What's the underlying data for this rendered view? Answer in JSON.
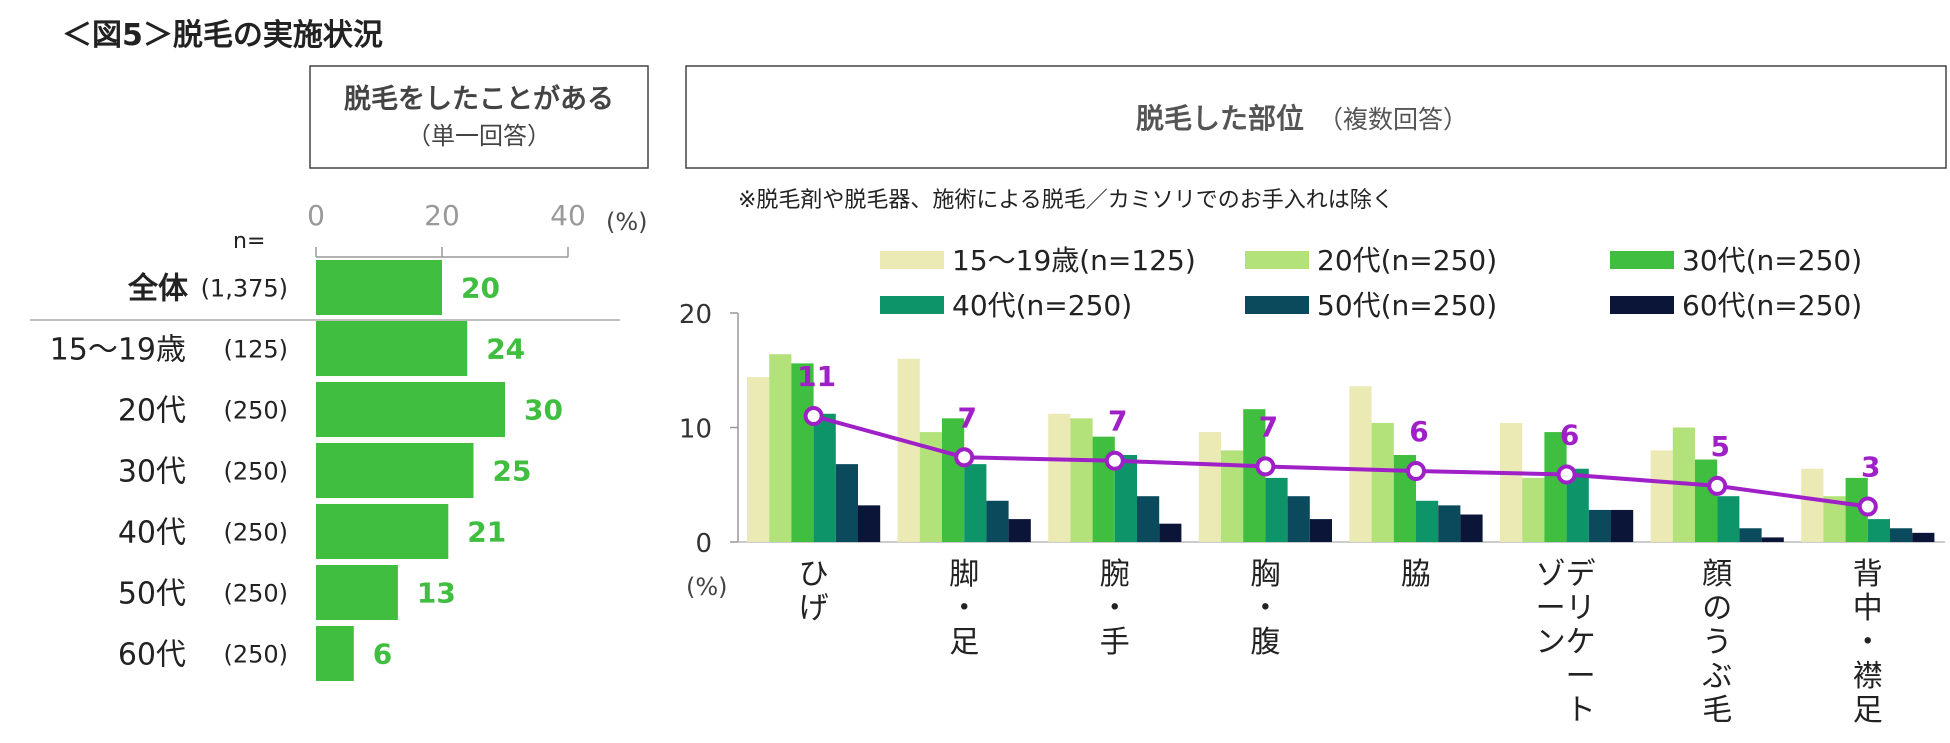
{
  "title": "＜図5＞脱毛の実施状況",
  "left_panel": {
    "header_title": "脱毛をしたことがある",
    "header_sub": "（単一回答）",
    "n_label": "n=",
    "percent_label": "(%)"
  },
  "right_panel": {
    "header_title": "脱毛した部位",
    "header_sub": "（複数回答）",
    "note": "※脱毛剤や脱毛器、施術による脱毛／カミソリでのお手入れは除く",
    "percent_label": "(%)"
  },
  "colors": {
    "bar_green": "#3fbe3f",
    "value_green": "#3fbe3f",
    "total_line": "#a020c8",
    "s15": "#ebe9b4",
    "s20": "#b4e27a",
    "s30": "#3fbe3f",
    "s40": "#0d9468",
    "s50": "#0b4a5c",
    "s60": "#0a1538",
    "axis": "#999999",
    "frame": "#444444"
  },
  "chart_data": [
    {
      "type": "bar",
      "orientation": "horizontal",
      "title": "脱毛をしたことがある（単一回答）",
      "categories": [
        "全体",
        "15～19歳",
        "20代",
        "30代",
        "40代",
        "50代",
        "60代"
      ],
      "n_labels": [
        "(1,375)",
        "(125)",
        "(250)",
        "(250)",
        "(250)",
        "(250)",
        "(250)"
      ],
      "values": [
        20,
        24,
        30,
        25,
        21,
        13,
        6
      ],
      "xlim": [
        0,
        40
      ],
      "xticks": [
        "0",
        "20",
        "40"
      ],
      "xlabel": "(%)"
    },
    {
      "type": "bar",
      "title": "脱毛した部位（複数回答）",
      "categories": [
        "ひげ",
        "脚・足",
        "腕・手",
        "胸・腹",
        "脇",
        "デリケートゾーン",
        "顔のうぶ毛",
        "背中・襟足"
      ],
      "category_columns": [
        [
          "ひげ"
        ],
        [
          "脚・足"
        ],
        [
          "腕・手"
        ],
        [
          "胸・腹"
        ],
        [
          "脇"
        ],
        [
          "デリケート",
          "ゾーン"
        ],
        [
          "顔のうぶ毛"
        ],
        [
          "背中・襟足"
        ]
      ],
      "series": [
        {
          "name": "15～19歳(n=125)",
          "values": [
            14.4,
            16.0,
            11.2,
            9.6,
            13.6,
            10.4,
            8.0,
            6.4
          ]
        },
        {
          "name": "20代(n=250)",
          "values": [
            16.4,
            9.6,
            10.8,
            8.0,
            10.4,
            5.6,
            10.0,
            4.0
          ]
        },
        {
          "name": "30代(n=250)",
          "values": [
            15.6,
            10.8,
            9.2,
            11.6,
            7.6,
            9.6,
            7.2,
            5.6
          ]
        },
        {
          "name": "40代(n=250)",
          "values": [
            11.2,
            6.8,
            7.6,
            5.6,
            3.6,
            6.4,
            4.0,
            2.0
          ]
        },
        {
          "name": "50代(n=250)",
          "values": [
            6.8,
            3.6,
            4.0,
            4.0,
            3.2,
            2.8,
            1.2,
            1.2
          ]
        },
        {
          "name": "60代(n=250)",
          "values": [
            3.2,
            2.0,
            1.6,
            2.0,
            2.4,
            2.8,
            0.4,
            0.8
          ]
        }
      ],
      "total_line": {
        "name": "全体",
        "values": [
          11,
          7.4,
          7.1,
          6.6,
          6.2,
          5.9,
          4.9,
          3.1
        ],
        "labels": [
          "11",
          "7",
          "7",
          "7",
          "6",
          "6",
          "5",
          "3"
        ]
      },
      "ylim": [
        0,
        20
      ],
      "yticks": [
        "0",
        "10",
        "20"
      ],
      "ylabel": "(%)"
    }
  ]
}
